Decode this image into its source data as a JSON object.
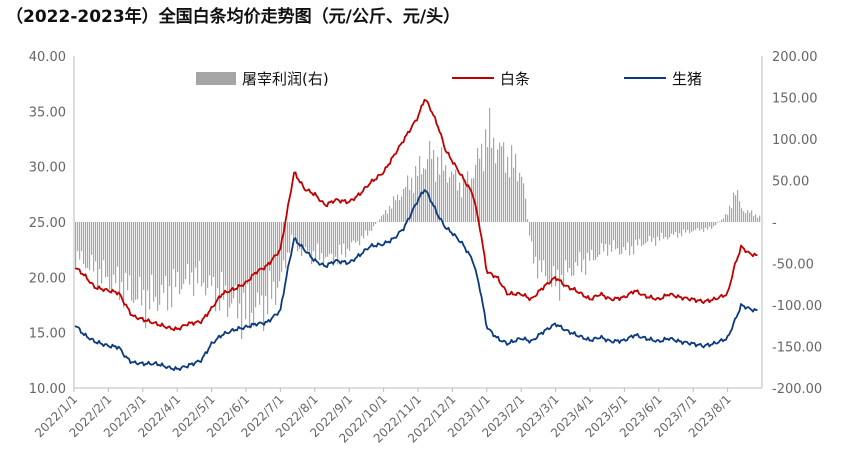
{
  "chart_data": {
    "type": "line",
    "title": "（2022-2023年）全国白条均价走势图（元/公斤、元/头）",
    "legend": {
      "placement": "top",
      "entries": [
        "屠宰利润(右)",
        "白条",
        "生猪"
      ]
    },
    "y_left": {
      "min": 10,
      "max": 40,
      "ticks": [
        "40.00",
        "35.00",
        "30.00",
        "25.00",
        "20.00",
        "15.00",
        "10.00"
      ]
    },
    "y_right": {
      "min": -200,
      "max": 200,
      "ticks": [
        "200.00",
        "150.00",
        "100.00",
        "50.00",
        "-",
        "-50.00",
        "-100.00",
        "-150.00",
        "-200.00"
      ]
    },
    "x_ticks": [
      "2022/1/1",
      "2022/2/1",
      "2022/3/1",
      "2022/4/1",
      "2022/5/1",
      "2022/6/1",
      "2022/7/1",
      "2022/8/1",
      "2022/9/1",
      "2022/10/1",
      "2022/11/1",
      "2022/12/1",
      "2023/1/1",
      "2023/2/1",
      "2023/3/1",
      "2023/4/1",
      "2023/5/1",
      "2023/6/1",
      "2023/7/1",
      "2023/8/1"
    ],
    "series": [
      {
        "name": "白条",
        "axis": "left",
        "color": "#c00000",
        "points": [
          [
            0,
            21.0
          ],
          [
            0.3,
            20.2
          ],
          [
            0.6,
            19.1
          ],
          [
            1.0,
            18.8
          ],
          [
            1.3,
            18.6
          ],
          [
            1.5,
            17.5
          ],
          [
            1.7,
            16.5
          ],
          [
            2.0,
            16.2
          ],
          [
            2.4,
            15.8
          ],
          [
            2.8,
            15.4
          ],
          [
            3.0,
            15.3
          ],
          [
            3.3,
            15.8
          ],
          [
            3.7,
            16.0
          ],
          [
            4.0,
            17.2
          ],
          [
            4.3,
            18.5
          ],
          [
            4.7,
            19.0
          ],
          [
            5.0,
            19.5
          ],
          [
            5.3,
            20.5
          ],
          [
            5.6,
            21.0
          ],
          [
            6.0,
            22.5
          ],
          [
            6.2,
            26.0
          ],
          [
            6.4,
            29.5
          ],
          [
            6.7,
            28.0
          ],
          [
            7.0,
            27.5
          ],
          [
            7.3,
            26.5
          ],
          [
            7.6,
            27.0
          ],
          [
            8.0,
            26.8
          ],
          [
            8.3,
            27.5
          ],
          [
            8.6,
            28.5
          ],
          [
            9.0,
            29.5
          ],
          [
            9.3,
            31.0
          ],
          [
            9.6,
            32.5
          ],
          [
            10.0,
            34.5
          ],
          [
            10.2,
            36.2
          ],
          [
            10.4,
            35.0
          ],
          [
            10.6,
            33.5
          ],
          [
            10.8,
            31.5
          ],
          [
            11.0,
            30.5
          ],
          [
            11.3,
            29.0
          ],
          [
            11.6,
            27.5
          ],
          [
            11.8,
            24.5
          ],
          [
            12.0,
            20.5
          ],
          [
            12.3,
            20.0
          ],
          [
            12.6,
            18.5
          ],
          [
            13.0,
            18.5
          ],
          [
            13.3,
            18.0
          ],
          [
            13.6,
            19.0
          ],
          [
            14.0,
            20.0
          ],
          [
            14.3,
            19.2
          ],
          [
            14.6,
            18.8
          ],
          [
            15.0,
            18.0
          ],
          [
            15.3,
            18.5
          ],
          [
            15.6,
            18.0
          ],
          [
            16.0,
            18.2
          ],
          [
            16.3,
            18.8
          ],
          [
            16.6,
            18.3
          ],
          [
            17.0,
            18.0
          ],
          [
            17.3,
            18.5
          ],
          [
            17.6,
            18.2
          ],
          [
            18.0,
            18.0
          ],
          [
            18.3,
            17.8
          ],
          [
            18.6,
            18.0
          ],
          [
            19.0,
            18.5
          ],
          [
            19.2,
            21.0
          ],
          [
            19.4,
            22.8
          ],
          [
            19.6,
            22.2
          ],
          [
            19.8,
            22.0
          ],
          [
            20.0,
            21.8
          ]
        ]
      },
      {
        "name": "生猪",
        "axis": "left",
        "color": "#0b3a7e",
        "points": [
          [
            0,
            15.8
          ],
          [
            0.3,
            14.8
          ],
          [
            0.6,
            14.2
          ],
          [
            1.0,
            13.8
          ],
          [
            1.3,
            13.7
          ],
          [
            1.5,
            12.8
          ],
          [
            1.7,
            12.3
          ],
          [
            2.0,
            12.2
          ],
          [
            2.4,
            12.2
          ],
          [
            2.8,
            11.8
          ],
          [
            3.0,
            11.7
          ],
          [
            3.3,
            12.0
          ],
          [
            3.7,
            12.5
          ],
          [
            4.0,
            14.0
          ],
          [
            4.3,
            14.8
          ],
          [
            4.7,
            15.3
          ],
          [
            5.0,
            15.5
          ],
          [
            5.3,
            15.8
          ],
          [
            5.6,
            15.9
          ],
          [
            6.0,
            17.0
          ],
          [
            6.2,
            20.5
          ],
          [
            6.4,
            23.5
          ],
          [
            6.7,
            22.5
          ],
          [
            7.0,
            21.5
          ],
          [
            7.3,
            21.0
          ],
          [
            7.6,
            21.5
          ],
          [
            8.0,
            21.3
          ],
          [
            8.3,
            22.0
          ],
          [
            8.6,
            22.8
          ],
          [
            9.0,
            23.0
          ],
          [
            9.3,
            23.5
          ],
          [
            9.6,
            24.5
          ],
          [
            10.0,
            27.0
          ],
          [
            10.2,
            28.0
          ],
          [
            10.4,
            26.8
          ],
          [
            10.6,
            25.5
          ],
          [
            10.8,
            24.5
          ],
          [
            11.0,
            24.0
          ],
          [
            11.3,
            23.0
          ],
          [
            11.6,
            21.5
          ],
          [
            11.8,
            19.0
          ],
          [
            12.0,
            15.5
          ],
          [
            12.3,
            14.5
          ],
          [
            12.6,
            14.0
          ],
          [
            13.0,
            14.5
          ],
          [
            13.3,
            14.2
          ],
          [
            13.6,
            15.0
          ],
          [
            14.0,
            15.8
          ],
          [
            14.3,
            15.2
          ],
          [
            14.6,
            14.8
          ],
          [
            15.0,
            14.3
          ],
          [
            15.3,
            14.6
          ],
          [
            15.6,
            14.2
          ],
          [
            16.0,
            14.3
          ],
          [
            16.3,
            14.8
          ],
          [
            16.6,
            14.5
          ],
          [
            17.0,
            14.2
          ],
          [
            17.3,
            14.5
          ],
          [
            17.6,
            14.2
          ],
          [
            18.0,
            14.0
          ],
          [
            18.3,
            13.8
          ],
          [
            18.6,
            14.0
          ],
          [
            19.0,
            14.5
          ],
          [
            19.2,
            16.0
          ],
          [
            19.4,
            17.5
          ],
          [
            19.6,
            17.2
          ],
          [
            19.8,
            17.0
          ],
          [
            20.0,
            17.0
          ]
        ]
      },
      {
        "name": "屠宰利润(右)",
        "axis": "right",
        "type": "bar",
        "color": "#a6a6a6",
        "points": [
          [
            0,
            -40
          ],
          [
            0.5,
            -55
          ],
          [
            1.0,
            -70
          ],
          [
            1.5,
            -80
          ],
          [
            2.0,
            -95
          ],
          [
            2.5,
            -90
          ],
          [
            3.0,
            -75
          ],
          [
            3.5,
            -65
          ],
          [
            4.0,
            -80
          ],
          [
            4.5,
            -95
          ],
          [
            5.0,
            -110
          ],
          [
            5.5,
            -100
          ],
          [
            6.0,
            -70
          ],
          [
            6.3,
            -20
          ],
          [
            6.6,
            -35
          ],
          [
            7.0,
            -40
          ],
          [
            7.5,
            -45
          ],
          [
            8.0,
            -30
          ],
          [
            8.5,
            -15
          ],
          [
            9.0,
            10
          ],
          [
            9.5,
            35
          ],
          [
            10.0,
            60
          ],
          [
            10.3,
            80
          ],
          [
            10.6,
            70
          ],
          [
            11.0,
            55
          ],
          [
            11.3,
            40
          ],
          [
            11.6,
            60
          ],
          [
            12.0,
            105
          ],
          [
            12.3,
            90
          ],
          [
            12.6,
            75
          ],
          [
            13.0,
            60
          ],
          [
            13.3,
            -40
          ],
          [
            13.6,
            -60
          ],
          [
            14.0,
            -75
          ],
          [
            14.5,
            -55
          ],
          [
            15.0,
            -45
          ],
          [
            15.5,
            -30
          ],
          [
            16.0,
            -35
          ],
          [
            16.5,
            -25
          ],
          [
            17.0,
            -20
          ],
          [
            17.5,
            -15
          ],
          [
            18.0,
            -10
          ],
          [
            18.5,
            -8
          ],
          [
            19.0,
            10
          ],
          [
            19.2,
            40
          ],
          [
            19.4,
            15
          ],
          [
            19.6,
            12
          ],
          [
            20.0,
            5
          ]
        ]
      }
    ]
  }
}
